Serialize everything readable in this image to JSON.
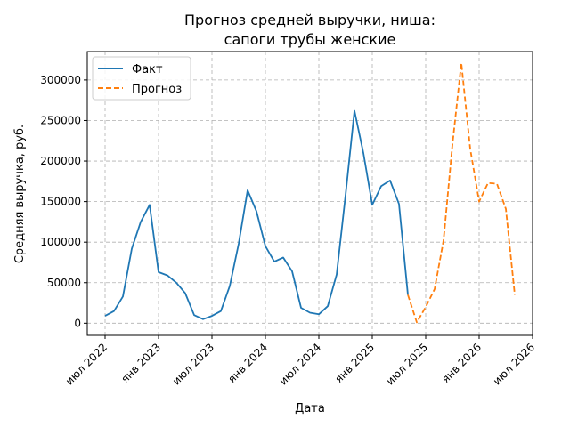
{
  "chart_data": {
    "type": "line",
    "title_line1": "Прогноз средней выручки, ниша:",
    "title_line2": "сапоги трубы женские",
    "xlabel": "Дата",
    "ylabel": "Средняя выручка, руб.",
    "x_ticks": [
      "июл 2022",
      "янв 2023",
      "июл 2023",
      "янв 2024",
      "июл 2024",
      "янв 2025",
      "июл 2025",
      "янв 2026",
      "июл 2026"
    ],
    "y_ticks": [
      0,
      50000,
      100000,
      150000,
      200000,
      250000,
      300000
    ],
    "ylim": [
      -15000,
      335000
    ],
    "xlim": [
      "2022-05-01",
      "2026-07-01"
    ],
    "grid": true,
    "legend_position": "top-left",
    "series": [
      {
        "name": "Факт",
        "color": "#1f77b4",
        "style": "solid",
        "x": [
          "2022-07",
          "2022-08",
          "2022-09",
          "2022-10",
          "2022-11",
          "2022-12",
          "2023-01",
          "2023-02",
          "2023-03",
          "2023-04",
          "2023-05",
          "2023-06",
          "2023-07",
          "2023-08",
          "2023-09",
          "2023-10",
          "2023-11",
          "2023-12",
          "2024-01",
          "2024-02",
          "2024-03",
          "2024-04",
          "2024-05",
          "2024-06",
          "2024-07",
          "2024-08",
          "2024-09",
          "2024-10",
          "2024-11",
          "2024-12",
          "2025-01",
          "2025-02",
          "2025-03",
          "2025-04",
          "2025-05"
        ],
        "values": [
          9000,
          15000,
          33000,
          92000,
          125000,
          146000,
          63000,
          59000,
          50000,
          37000,
          10000,
          5000,
          9000,
          15000,
          46000,
          98000,
          164000,
          138000,
          95000,
          76000,
          81000,
          64000,
          19000,
          13000,
          11000,
          21000,
          60000,
          158000,
          262000,
          210000,
          146000,
          169000,
          176000,
          147000,
          35000
        ]
      },
      {
        "name": "Прогноз",
        "color": "#ff7f0e",
        "style": "dashed",
        "x": [
          "2025-05",
          "2025-06",
          "2025-07",
          "2025-08",
          "2025-09",
          "2025-10",
          "2025-11",
          "2025-12",
          "2026-01",
          "2026-02",
          "2026-03",
          "2026-04",
          "2026-05"
        ],
        "values": [
          35000,
          1000,
          20000,
          42000,
          102000,
          220000,
          321000,
          215000,
          150000,
          173000,
          172000,
          141000,
          35000
        ]
      }
    ]
  }
}
